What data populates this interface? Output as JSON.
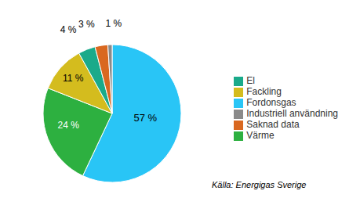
{
  "chart_data": {
    "type": "pie",
    "categories": [
      "Fordonsgas",
      "Värme",
      "Fackling",
      "El",
      "Saknad data",
      "Industriell användning"
    ],
    "values": [
      57,
      24,
      11,
      4,
      3,
      1
    ],
    "value_labels": [
      "57 %",
      "24 %",
      "11 %",
      "4 %",
      "3 %",
      "1 %"
    ],
    "colors": [
      "#29c5f6",
      "#2db040",
      "#d4bc1e",
      "#1aaa8a",
      "#d96820",
      "#8a8a8a"
    ],
    "annotations": [
      "Källa: Energigas Sverige"
    ],
    "legend": "right",
    "data_labels": true
  }
}
